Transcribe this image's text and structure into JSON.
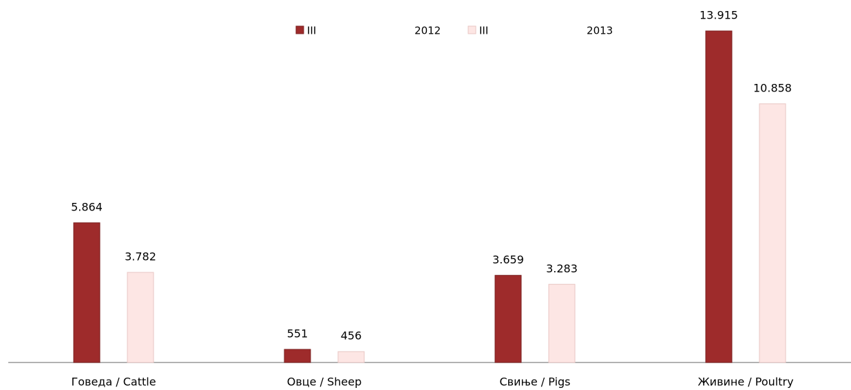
{
  "chart_data": {
    "type": "bar",
    "categories": [
      "Говеда / Cattle",
      "Овце / Sheep",
      "Свиње / Pigs",
      "Живине / Poultry"
    ],
    "series": [
      {
        "name": "III 2012",
        "color": "#9e2b2b",
        "values": [
          5864,
          551,
          3659,
          13915
        ],
        "value_labels": [
          "5.864",
          "551",
          "3.659",
          "13.915"
        ]
      },
      {
        "name": "III 2013",
        "color": "#fde6e4",
        "values": [
          3782,
          456,
          3283,
          10858
        ],
        "value_labels": [
          "3.782",
          "456",
          "3.283",
          "10.858"
        ]
      }
    ],
    "legend": "top"
  }
}
